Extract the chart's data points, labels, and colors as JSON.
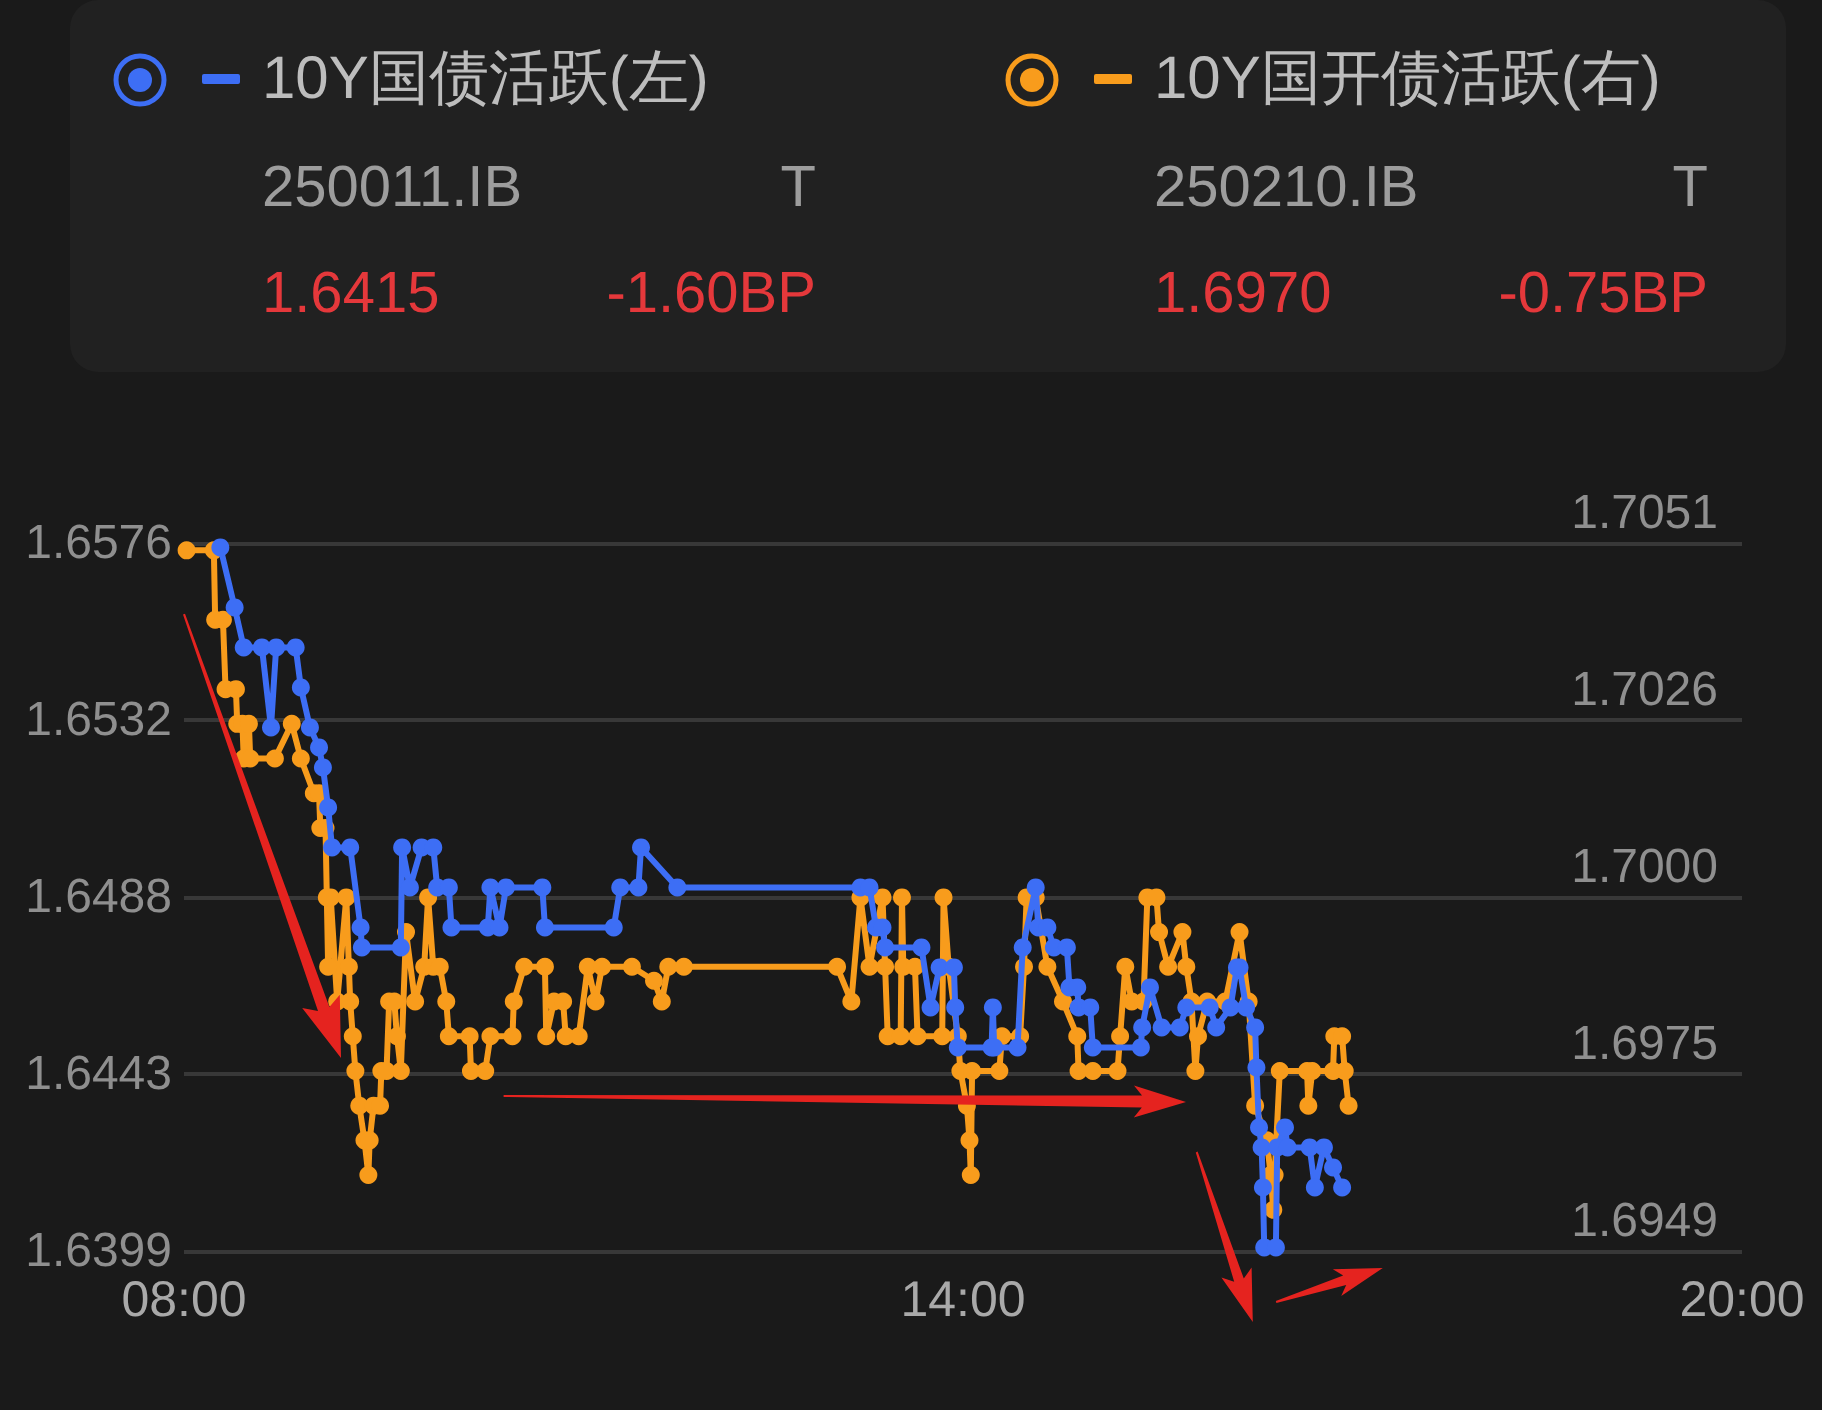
{
  "chart_data": {
    "type": "line",
    "series": [
      {
        "name": "10Y国债活跃(左)",
        "color": "#3d6ef5",
        "x": [
          8.28,
          8.39,
          8.46,
          8.6,
          8.67,
          8.71,
          8.86,
          8.9,
          8.97,
          9.04,
          9.07,
          9.11,
          9.14,
          9.28,
          9.36,
          9.37,
          9.67,
          9.68,
          9.74,
          9.83,
          9.92,
          9.95,
          10.04,
          10.06,
          10.34,
          10.36,
          10.43,
          10.48,
          10.76,
          10.78,
          11.31,
          11.36,
          11.5,
          11.52,
          11.8,
          13.21,
          13.28,
          13.33,
          13.38,
          13.4,
          13.68,
          13.75,
          13.82,
          13.93,
          13.94,
          13.96,
          14.22,
          14.23,
          14.24,
          14.42,
          14.46,
          14.56,
          14.58,
          14.65,
          14.7,
          14.8,
          14.82,
          14.88,
          14.89,
          14.98,
          15.0,
          15.37,
          15.38,
          15.44,
          15.53,
          15.67,
          15.72,
          15.9,
          15.95,
          16.06,
          16.11,
          16.13,
          16.18,
          16.25,
          16.26,
          16.28,
          16.3,
          16.31,
          16.32,
          16.41,
          16.42,
          16.48,
          16.5,
          16.67,
          16.71,
          16.78,
          16.85,
          16.92
        ],
        "values": [
          1.6575,
          1.656,
          1.655,
          1.655,
          1.653,
          1.655,
          1.655,
          1.654,
          1.653,
          1.6525,
          1.652,
          1.651,
          1.65,
          1.65,
          1.648,
          1.6475,
          1.6475,
          1.65,
          1.649,
          1.65,
          1.65,
          1.649,
          1.649,
          1.648,
          1.648,
          1.649,
          1.648,
          1.649,
          1.649,
          1.648,
          1.648,
          1.649,
          1.649,
          1.65,
          1.649,
          1.649,
          1.649,
          1.648,
          1.648,
          1.6475,
          1.6475,
          1.646,
          1.647,
          1.647,
          1.646,
          1.645,
          1.645,
          1.646,
          1.645,
          1.645,
          1.6475,
          1.649,
          1.648,
          1.648,
          1.6475,
          1.6475,
          1.6465,
          1.6465,
          1.646,
          1.646,
          1.645,
          1.645,
          1.6455,
          1.6465,
          1.6455,
          1.6455,
          1.646,
          1.646,
          1.6455,
          1.646,
          1.647,
          1.647,
          1.646,
          1.6455,
          1.6445,
          1.643,
          1.6425,
          1.6415,
          1.64,
          1.64,
          1.6425,
          1.643,
          1.6425,
          1.6425,
          1.6415,
          1.6425,
          1.642,
          1.6415
        ]
      },
      {
        "name": "10Y国开债活跃(右)",
        "color": "#f89c1c",
        "axis": "y2",
        "x": [
          8.02,
          8.23,
          8.24,
          8.3,
          8.32,
          8.4,
          8.41,
          8.45,
          8.46,
          8.5,
          8.51,
          8.7,
          8.83,
          8.9,
          9.0,
          9.04,
          9.05,
          9.09,
          9.1,
          9.11,
          9.13,
          9.18,
          9.25,
          9.27,
          9.28,
          9.3,
          9.32,
          9.35,
          9.39,
          9.42,
          9.43,
          9.46,
          9.51,
          9.52,
          9.56,
          9.58,
          9.62,
          9.64,
          9.67,
          9.71,
          9.78,
          9.85,
          9.88,
          9.92,
          9.97,
          10.02,
          10.04,
          10.2,
          10.21,
          10.32,
          10.36,
          10.53,
          10.54,
          10.62,
          10.78,
          10.79,
          10.85,
          10.92,
          10.94,
          11.04,
          11.11,
          11.17,
          11.22,
          11.45,
          11.62,
          11.68,
          11.73,
          11.85,
          13.03,
          13.14,
          13.21,
          13.28,
          13.38,
          13.4,
          13.42,
          13.52,
          13.53,
          13.54,
          13.63,
          13.65,
          13.84,
          13.85,
          13.89,
          13.96,
          13.98,
          14.03,
          14.05,
          14.06,
          14.07,
          14.28,
          14.3,
          14.44,
          14.47,
          14.49,
          14.56,
          14.65,
          14.77,
          14.88,
          14.89,
          15.0,
          15.19,
          15.21,
          15.25,
          15.3,
          15.39,
          15.42,
          15.49,
          15.51,
          15.58,
          15.69,
          15.72,
          15.76,
          15.79,
          15.81,
          15.88,
          16.02,
          16.13,
          16.2,
          16.25,
          16.34,
          16.37,
          16.39,
          16.4,
          16.44,
          16.65,
          16.66,
          16.69,
          16.85,
          16.86,
          16.92,
          16.94,
          16.97
        ],
        "values": [
          1.705,
          1.705,
          1.704,
          1.704,
          1.703,
          1.703,
          1.7025,
          1.7025,
          1.702,
          1.7025,
          1.702,
          1.702,
          1.7025,
          1.702,
          1.7015,
          1.7015,
          1.701,
          1.701,
          1.7,
          1.699,
          1.7,
          1.6985,
          1.7,
          1.699,
          1.6985,
          1.698,
          1.6975,
          1.697,
          1.6965,
          1.696,
          1.6965,
          1.697,
          1.697,
          1.6975,
          1.6975,
          1.6985,
          1.6985,
          1.698,
          1.6975,
          1.6995,
          1.6985,
          1.699,
          1.7,
          1.699,
          1.699,
          1.6985,
          1.698,
          1.698,
          1.6975,
          1.6975,
          1.698,
          1.698,
          1.6985,
          1.699,
          1.699,
          1.698,
          1.6985,
          1.6985,
          1.698,
          1.698,
          1.699,
          1.6985,
          1.699,
          1.699,
          1.6988,
          1.6985,
          1.699,
          1.699,
          1.699,
          1.6985,
          1.7,
          1.699,
          1.7,
          1.699,
          1.698,
          1.698,
          1.7,
          1.699,
          1.699,
          1.698,
          1.698,
          1.7,
          1.699,
          1.698,
          1.6975,
          1.697,
          1.6965,
          1.696,
          1.6975,
          1.6975,
          1.698,
          1.698,
          1.699,
          1.7,
          1.7,
          1.699,
          1.6985,
          1.698,
          1.6975,
          1.6975,
          1.6975,
          1.698,
          1.699,
          1.6985,
          1.6985,
          1.7,
          1.7,
          1.6995,
          1.699,
          1.6995,
          1.699,
          1.6985,
          1.6975,
          1.698,
          1.6985,
          1.6985,
          1.6995,
          1.6985,
          1.697,
          1.6965,
          1.696,
          1.6955,
          1.696,
          1.6975,
          1.6975,
          1.697,
          1.6975,
          1.6975,
          1.698,
          1.698,
          1.6975,
          1.697
        ]
      }
    ],
    "xlim": [
      8,
      20
    ],
    "xticks": [
      {
        "value": 8,
        "label": "08:00"
      },
      {
        "value": 14,
        "label": "14:00"
      },
      {
        "value": 20,
        "label": "20:00"
      }
    ],
    "ylim": [
      1.6399,
      1.6576
    ],
    "yticks": [
      1.6399,
      {
        "value": 1.644325,
        "label": "1.6443"
      },
      {
        "value": 1.64875,
        "label": "1.6488"
      },
      {
        "value": 1.653175,
        "label": "1.6532"
      },
      1.6576
    ],
    "y2lim": [
      1.6949,
      1.7051
    ],
    "y2ticks": [
      1.6949,
      {
        "value": 1.69745,
        "label": "1.6975"
      },
      {
        "value": 1.7,
        "label": "1.7000"
      },
      {
        "value": 1.70255,
        "label": "1.7026"
      },
      1.7051
    ],
    "grid": "y",
    "legend": "top",
    "marker": "circle",
    "annotations": [
      "250011.IB",
      "T",
      "1.6415",
      "-1.60BP",
      "250210.IB",
      "T",
      "1.6970",
      "-0.75BP"
    ]
  }
}
